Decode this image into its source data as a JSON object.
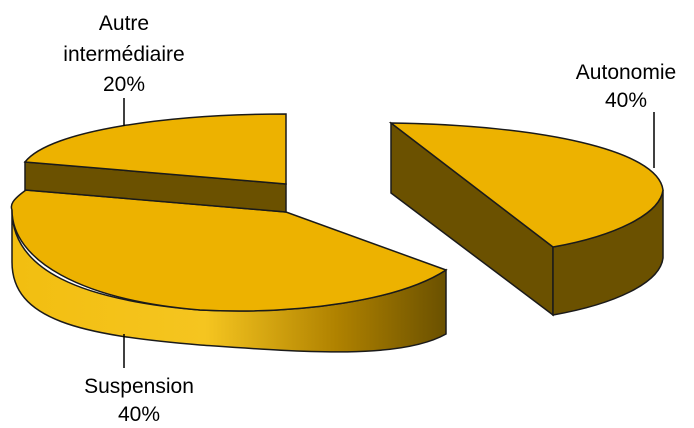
{
  "chart_data": {
    "type": "pie",
    "style": "3d-exploded",
    "title": "",
    "slices": [
      {
        "label": "Autonomie",
        "value": 40,
        "value_label": "40%"
      },
      {
        "label": "Suspension",
        "value": 40,
        "value_label": "40%"
      },
      {
        "label": "Autre intermédiaire",
        "label_lines": [
          "Autre",
          "intermédiaire"
        ],
        "value": 20,
        "value_label": "20%"
      }
    ],
    "colors": {
      "top": "#EDB200",
      "side_dark": "#6B5100",
      "side_light": "#F5C21A",
      "outline": "#1a1a1a"
    },
    "legend": "none"
  }
}
